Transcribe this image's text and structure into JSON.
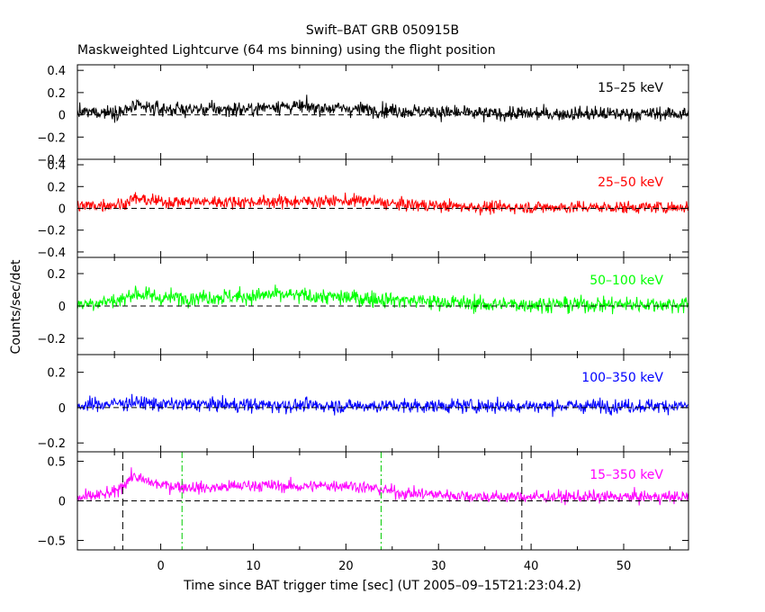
{
  "figure": {
    "title": "Swift–BAT GRB 050915B",
    "subtitle": "Maskweighted Lightcurve (64 ms binning) using the flight position"
  },
  "chart_data": {
    "type": "line",
    "title": "Swift–BAT GRB 050915B",
    "subtitle": "Maskweighted Lightcurve (64 ms binning) using the flight position",
    "xlabel": "Time since BAT trigger time [sec] (UT 2005–09–15T21:23:04.2)",
    "ylabel": "Counts/sec/det",
    "xlim": [
      -9,
      57
    ],
    "bin_width_sec": 0.064,
    "x_ticks": [
      0,
      10,
      20,
      30,
      40,
      50
    ],
    "x_tick_labels": [
      "0",
      "10",
      "20",
      "30",
      "40",
      "50"
    ],
    "grid": false,
    "panels": [
      {
        "band": "15–25 keV",
        "color": "#000000",
        "ylim": [
          -0.4,
          0.45
        ],
        "y_ticks": [
          -0.4,
          -0.2,
          0,
          0.2,
          0.4
        ],
        "y_tick_labels": [
          "−0.4",
          "−0.2",
          "0",
          "0.2",
          "0.4"
        ],
        "noise_sigma": 0.045,
        "profile": {
          "t": [
            -9,
            -4,
            -3,
            -1,
            0,
            10,
            12,
            25,
            35,
            57
          ],
          "y": [
            0.02,
            0.03,
            0.07,
            0.06,
            0.05,
            0.05,
            0.08,
            0.04,
            0.01,
            0.01
          ]
        }
      },
      {
        "band": "25–50 keV",
        "color": "#ff0000",
        "ylim": [
          -0.45,
          0.45
        ],
        "y_ticks": [
          -0.4,
          -0.2,
          0,
          0.2,
          0.4
        ],
        "y_tick_labels": [
          "−0.4",
          "−0.2",
          "0",
          "0.2",
          "0.4"
        ],
        "noise_sigma": 0.04,
        "profile": {
          "t": [
            -9,
            -4,
            -3,
            -1,
            0,
            10,
            22,
            25,
            35,
            57
          ],
          "y": [
            0.02,
            0.04,
            0.09,
            0.07,
            0.06,
            0.06,
            0.07,
            0.04,
            0.01,
            0.01
          ]
        }
      },
      {
        "band": "50–100 keV",
        "color": "#00ff00",
        "ylim": [
          -0.3,
          0.3
        ],
        "y_ticks": [
          -0.2,
          0,
          0.2
        ],
        "y_tick_labels": [
          "−0.2",
          "0",
          "0.2"
        ],
        "noise_sigma": 0.035,
        "profile": {
          "t": [
            -9,
            -4,
            -3,
            -1,
            0,
            10,
            12,
            25,
            35,
            57
          ],
          "y": [
            0.01,
            0.04,
            0.08,
            0.06,
            0.05,
            0.06,
            0.07,
            0.04,
            0.01,
            0.01
          ]
        }
      },
      {
        "band": "100–350 keV",
        "color": "#0000ff",
        "ylim": [
          -0.25,
          0.3
        ],
        "y_ticks": [
          -0.2,
          0,
          0.2
        ],
        "y_tick_labels": [
          "−0.2",
          "0",
          "0.2"
        ],
        "noise_sigma": 0.028,
        "profile": {
          "t": [
            -9,
            -3,
            0,
            20,
            57
          ],
          "y": [
            0.01,
            0.03,
            0.02,
            0.01,
            0.01
          ]
        }
      },
      {
        "band": "15–350 keV",
        "color": "#ff00ff",
        "ylim": [
          -0.62,
          0.62
        ],
        "y_ticks": [
          -0.5,
          0,
          0.5
        ],
        "y_tick_labels": [
          "−0.5",
          "0",
          "0.5"
        ],
        "noise_sigma": 0.055,
        "profile": {
          "t": [
            -9,
            -5,
            -3,
            -2,
            0,
            5,
            10,
            15,
            20,
            23.5,
            26,
            30,
            35,
            40,
            57
          ],
          "y": [
            0.03,
            0.1,
            0.32,
            0.26,
            0.2,
            0.16,
            0.2,
            0.18,
            0.2,
            0.15,
            0.1,
            0.08,
            0.05,
            0.05,
            0.05
          ]
        },
        "markers": [
          {
            "t": -4.1,
            "style": "dashed",
            "color": "#000000"
          },
          {
            "t": 2.3,
            "style": "dashdot",
            "color": "#00cc00"
          },
          {
            "t": 23.8,
            "style": "dashdot",
            "color": "#00cc00"
          },
          {
            "t": 39.0,
            "style": "dashed",
            "color": "#000000"
          }
        ]
      }
    ]
  }
}
